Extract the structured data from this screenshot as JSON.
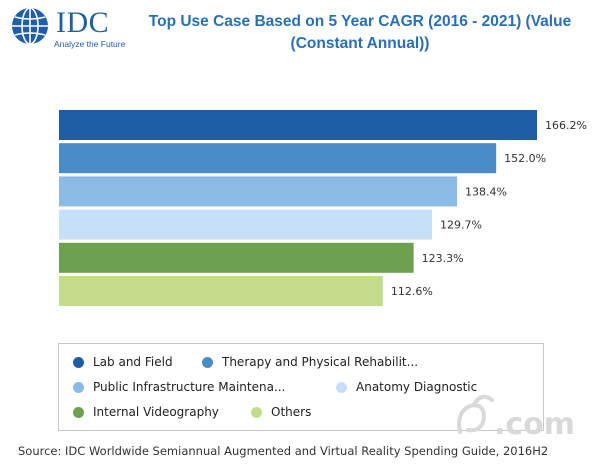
{
  "logo": {
    "text": "IDC",
    "tagline": "Analyze the Future"
  },
  "chart_data": {
    "type": "bar",
    "orientation": "horizontal",
    "title": "Top Use Case Based on 5 Year CAGR (2016 - 2021) (Value (Constant Annual))",
    "categories": [
      "Lab and Field",
      "Therapy and Physical Rehabilit...",
      "Public Infrastructure Maintena...",
      "Anatomy Diagnostic",
      "Internal Videography",
      "Others"
    ],
    "values": [
      166.2,
      152.0,
      138.4,
      129.7,
      123.3,
      112.6
    ],
    "value_labels": [
      "166.2%",
      "152.0%",
      "138.4%",
      "129.7%",
      "123.3%",
      "112.6%"
    ],
    "colors": [
      "#1d5ea6",
      "#4a8cc6",
      "#8bbbe4",
      "#c6e1f7",
      "#6ea14f",
      "#c2dc8c"
    ],
    "unit": "%",
    "grid": false,
    "legend_position": "bottom"
  },
  "source": "Source: IDC Worldwide Semiannual Augmented and Virtual Reality Spending Guide, 2016H2",
  "watermark": {
    "text": ".com"
  }
}
